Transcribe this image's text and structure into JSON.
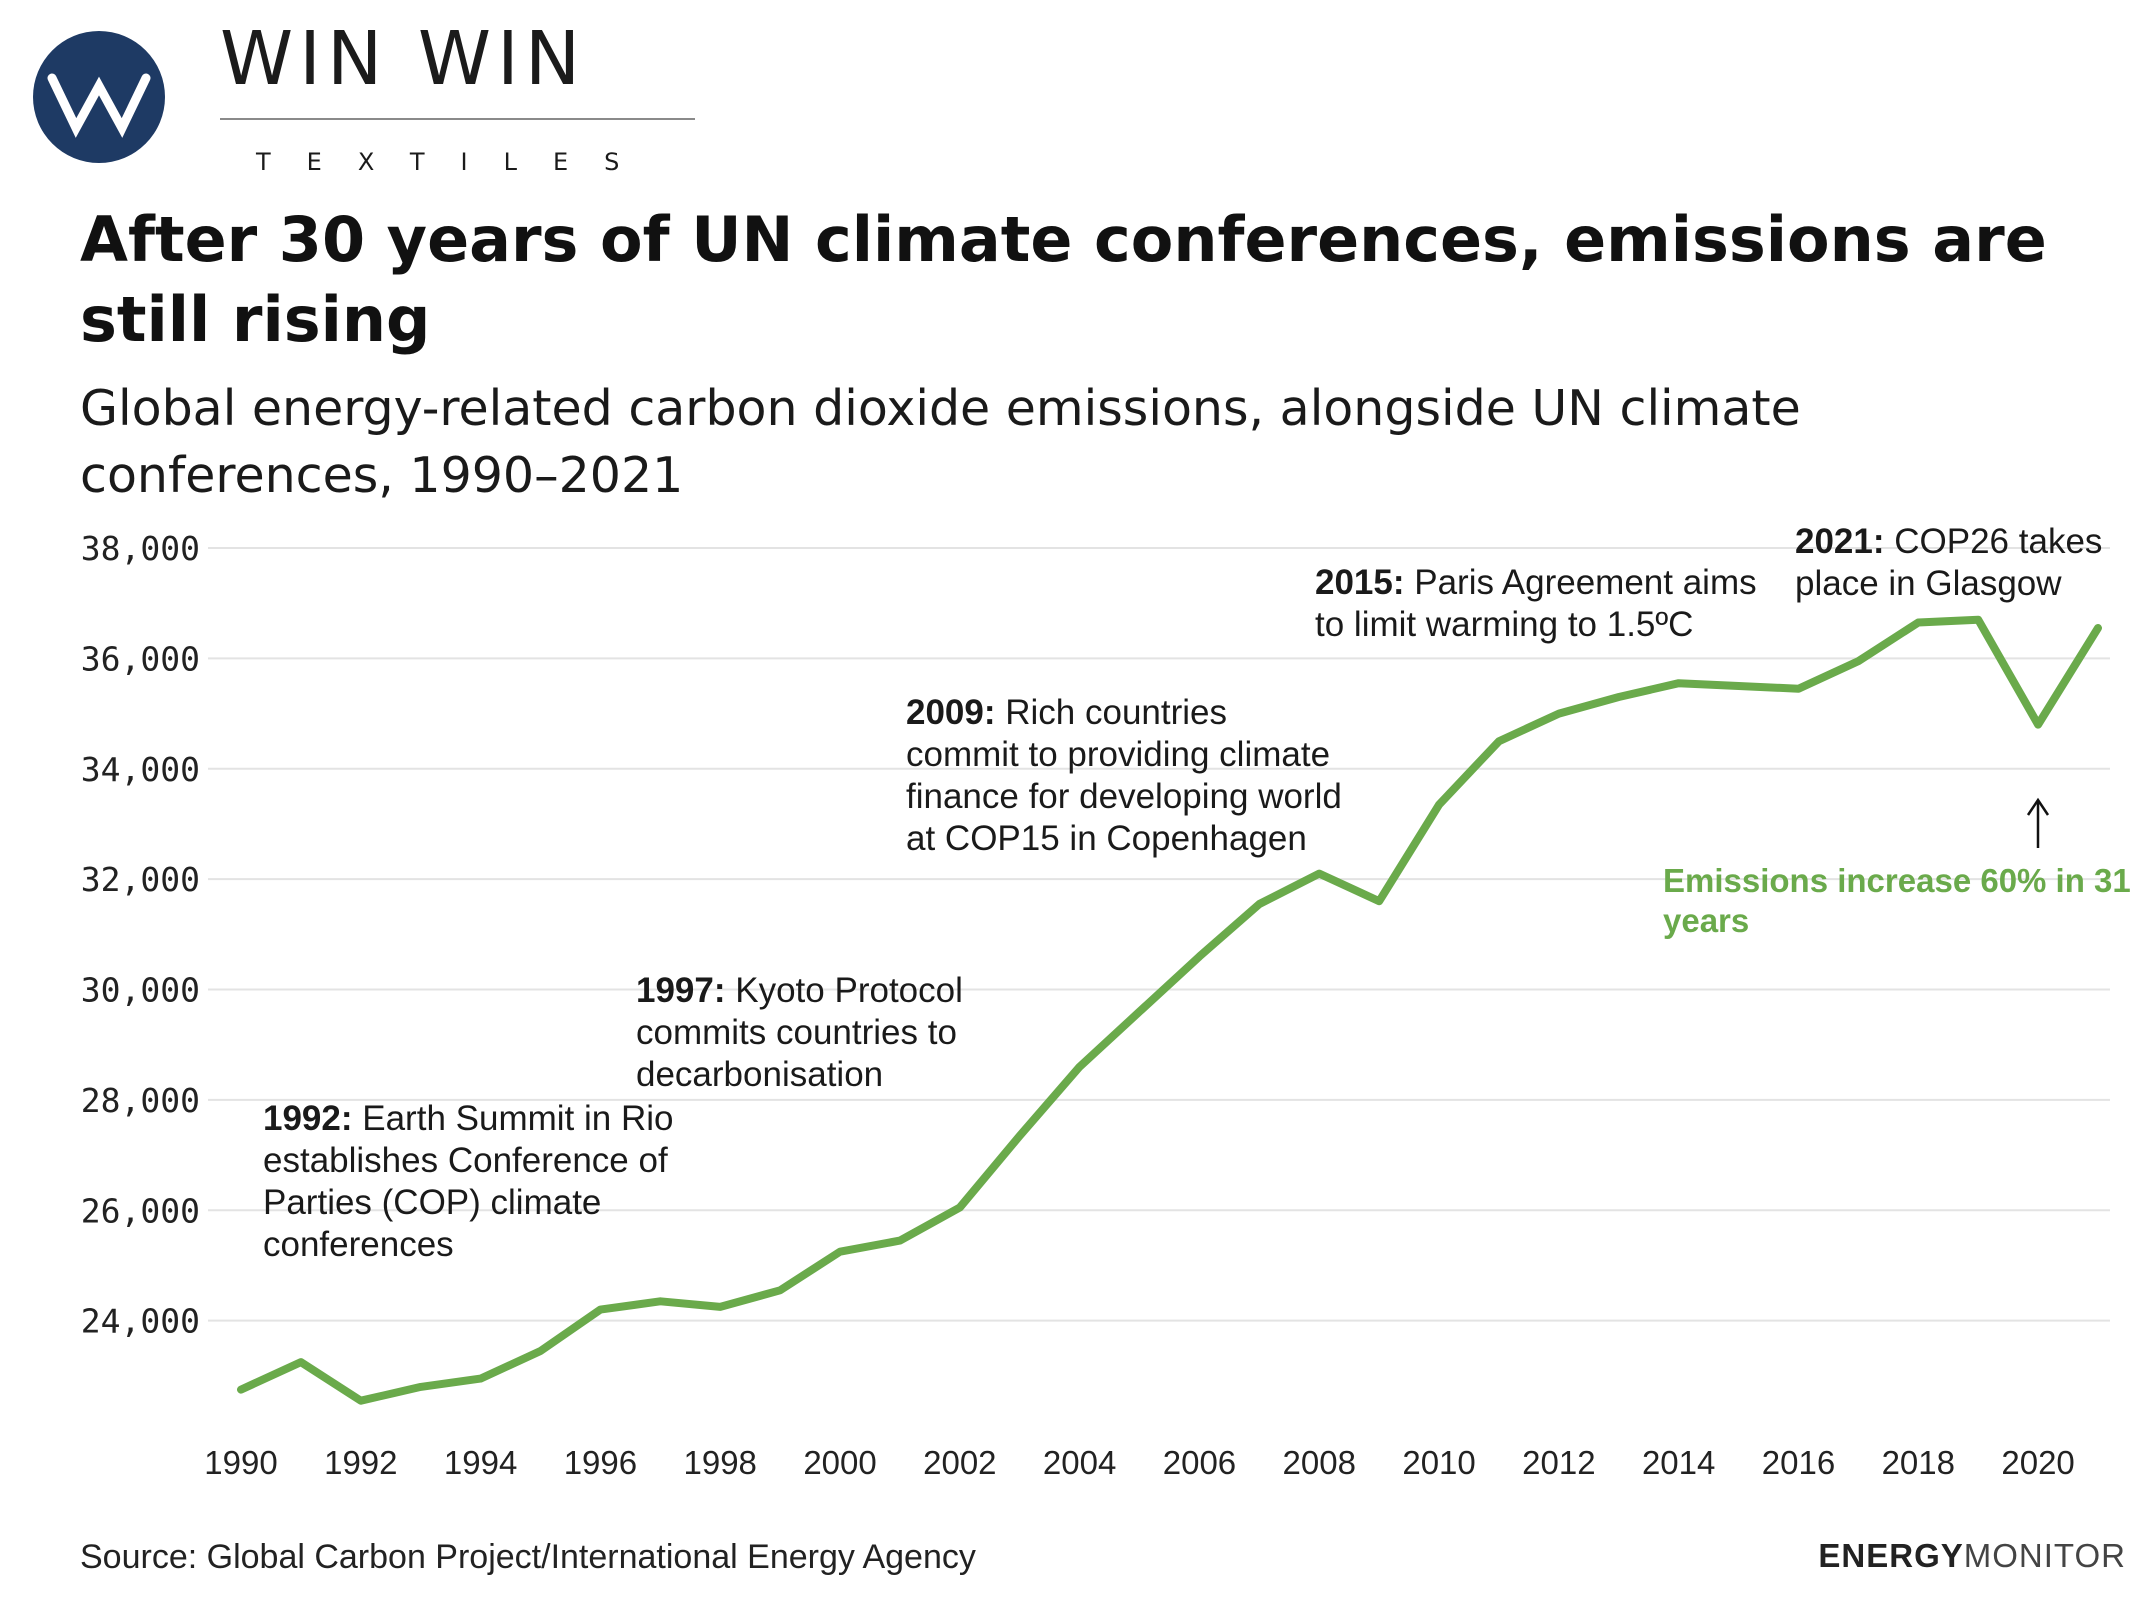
{
  "brand": {
    "name": "WIN WIN",
    "tagline": "TEXTILES",
    "logo_color": "#1e3a64"
  },
  "header": {
    "title": "After 30 years of UN climate conferences, emissions are still rising",
    "subtitle": "Global energy-related carbon dioxide emissions, alongside UN climate conferences, 1990–2021"
  },
  "footer": {
    "source": "Source: Global Carbon Project/International Energy Agency",
    "credit_bold": "ENERGY",
    "credit_light": "MONITOR"
  },
  "colors": {
    "line": "#6aaa4b",
    "grid": "#e3e3e3",
    "text": "#111111"
  },
  "chart_data": {
    "type": "line",
    "title": "After 30 years of UN climate conferences, emissions are still rising",
    "subtitle": "Global energy-related carbon dioxide emissions, alongside UN climate conferences, 1990–2021",
    "xlabel": "",
    "ylabel": "",
    "xlim": [
      1990,
      2021
    ],
    "ylim": [
      22200,
      38000
    ],
    "yticks": [
      24000,
      26000,
      28000,
      30000,
      32000,
      34000,
      36000,
      38000
    ],
    "ytick_labels": [
      "24,000",
      "26,000",
      "28,000",
      "30,000",
      "32,000",
      "34,000",
      "36,000",
      "38,000"
    ],
    "xticks": [
      1990,
      1992,
      1994,
      1996,
      1998,
      2000,
      2002,
      2004,
      2006,
      2008,
      2010,
      2012,
      2014,
      2016,
      2018,
      2020
    ],
    "grid": "horizontal",
    "x": [
      1990,
      1991,
      1992,
      1993,
      1994,
      1995,
      1996,
      1997,
      1998,
      1999,
      2000,
      2001,
      2002,
      2003,
      2004,
      2005,
      2006,
      2007,
      2008,
      2009,
      2010,
      2011,
      2012,
      2013,
      2014,
      2015,
      2016,
      2017,
      2018,
      2019,
      2020,
      2021
    ],
    "series": [
      {
        "values": [
          22750,
          23250,
          22550,
          22800,
          22950,
          23450,
          24200,
          24350,
          24250,
          24550,
          25250,
          25450,
          26050,
          27350,
          28600,
          29600,
          30600,
          31550,
          32100,
          31600,
          33350,
          34500,
          35000,
          35300,
          35550,
          35500,
          35450,
          35950,
          36650,
          36700,
          34800,
          36550
        ]
      }
    ],
    "annotations": [
      {
        "year": "1992:",
        "text": [
          "Earth Summit in Rio",
          "establishes Conference of",
          "Parties (COP) climate",
          "conferences"
        ]
      },
      {
        "year": "1997:",
        "text": [
          "Kyoto Protocol",
          "commits countries to",
          "decarbonisation"
        ]
      },
      {
        "year": "2009:",
        "text": [
          "Rich countries",
          "commit to providing climate",
          "finance for developing world",
          "at COP15 in Copenhagen"
        ]
      },
      {
        "year": "2015:",
        "text": [
          "Paris Agreement aims",
          "to limit warming to 1.5ºC"
        ]
      },
      {
        "year": "2021:",
        "text": [
          "COP26 takes",
          "place in Glasgow"
        ]
      }
    ],
    "callout": {
      "lines": [
        "Emissions increase 60% in 31",
        "years"
      ],
      "arrow": "up"
    }
  }
}
